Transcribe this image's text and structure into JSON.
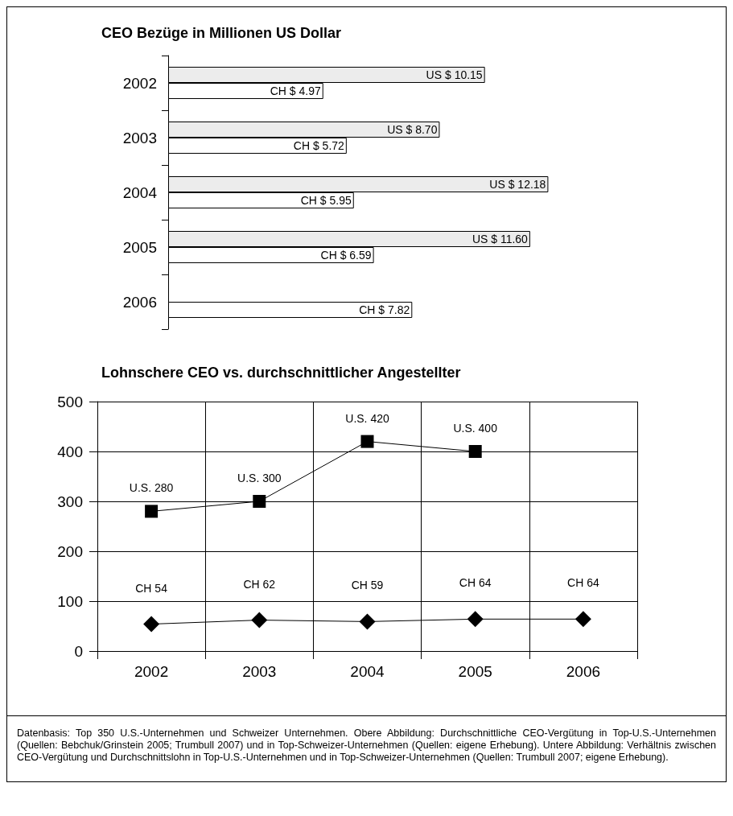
{
  "chart_data": [
    {
      "type": "bar",
      "orientation": "horizontal",
      "title": "CEO Bezüge in Millionen US Dollar",
      "categories": [
        "2002",
        "2003",
        "2004",
        "2005",
        "2006"
      ],
      "series": [
        {
          "color": "#ececec",
          "values": [
            10.15,
            8.7,
            12.18,
            11.6,
            null
          ],
          "value_labels": [
            "US $ 10.15",
            "US $ 8.70",
            "US $ 12.18",
            "US $ 11.60",
            null
          ]
        },
        {
          "color": "#ffffff",
          "values": [
            4.97,
            5.72,
            5.95,
            6.59,
            7.82
          ],
          "value_labels": [
            "CH $ 4.97",
            "CH $ 5.72",
            "CH $ 5.95",
            "CH $ 6.59",
            "CH $ 7.82"
          ]
        }
      ]
    },
    {
      "type": "line",
      "title": "Lohnschere CEO vs. durchschnittlicher Angestellter",
      "categories": [
        "2002",
        "2003",
        "2004",
        "2005",
        "2006"
      ],
      "ylim": [
        0,
        500
      ],
      "yticks": [
        0,
        100,
        200,
        300,
        400,
        500
      ],
      "grid": true,
      "series": [
        {
          "color": "#000000",
          "marker": "square",
          "values": [
            280,
            300,
            420,
            400,
            null
          ],
          "value_labels": [
            "U.S. 280",
            "U.S. 300",
            "U.S. 420",
            "U.S. 400",
            null
          ]
        },
        {
          "color": "#000000",
          "marker": "diamond",
          "values": [
            54,
            62,
            59,
            64,
            64
          ],
          "value_labels": [
            "CH 54",
            "CH 62",
            "CH 59",
            "CH 64",
            "CH 64"
          ]
        }
      ],
      "annotations": [
        "Datenbasis: Top 350 U.S.-Unternehmen und Schweizer Unternehmen. Obere Abbildung: Durchschnittliche CEO-Vergütung in Top-U.S.-Unternehmen (Quellen: Bebchuk/Grinstein 2005; Trumbull 2007) und in Top-Schweizer-Unternehmen (Quellen: eigene Erhebung). Untere Abbildung: Verhältnis zwischen CEO-Vergütung und Durchschnittslohn in Top-U.S.-Unternehmen und in Top-Schweizer-Unternehmen (Quellen: Trumbull 2007; eigene Erhebung)."
      ]
    }
  ]
}
